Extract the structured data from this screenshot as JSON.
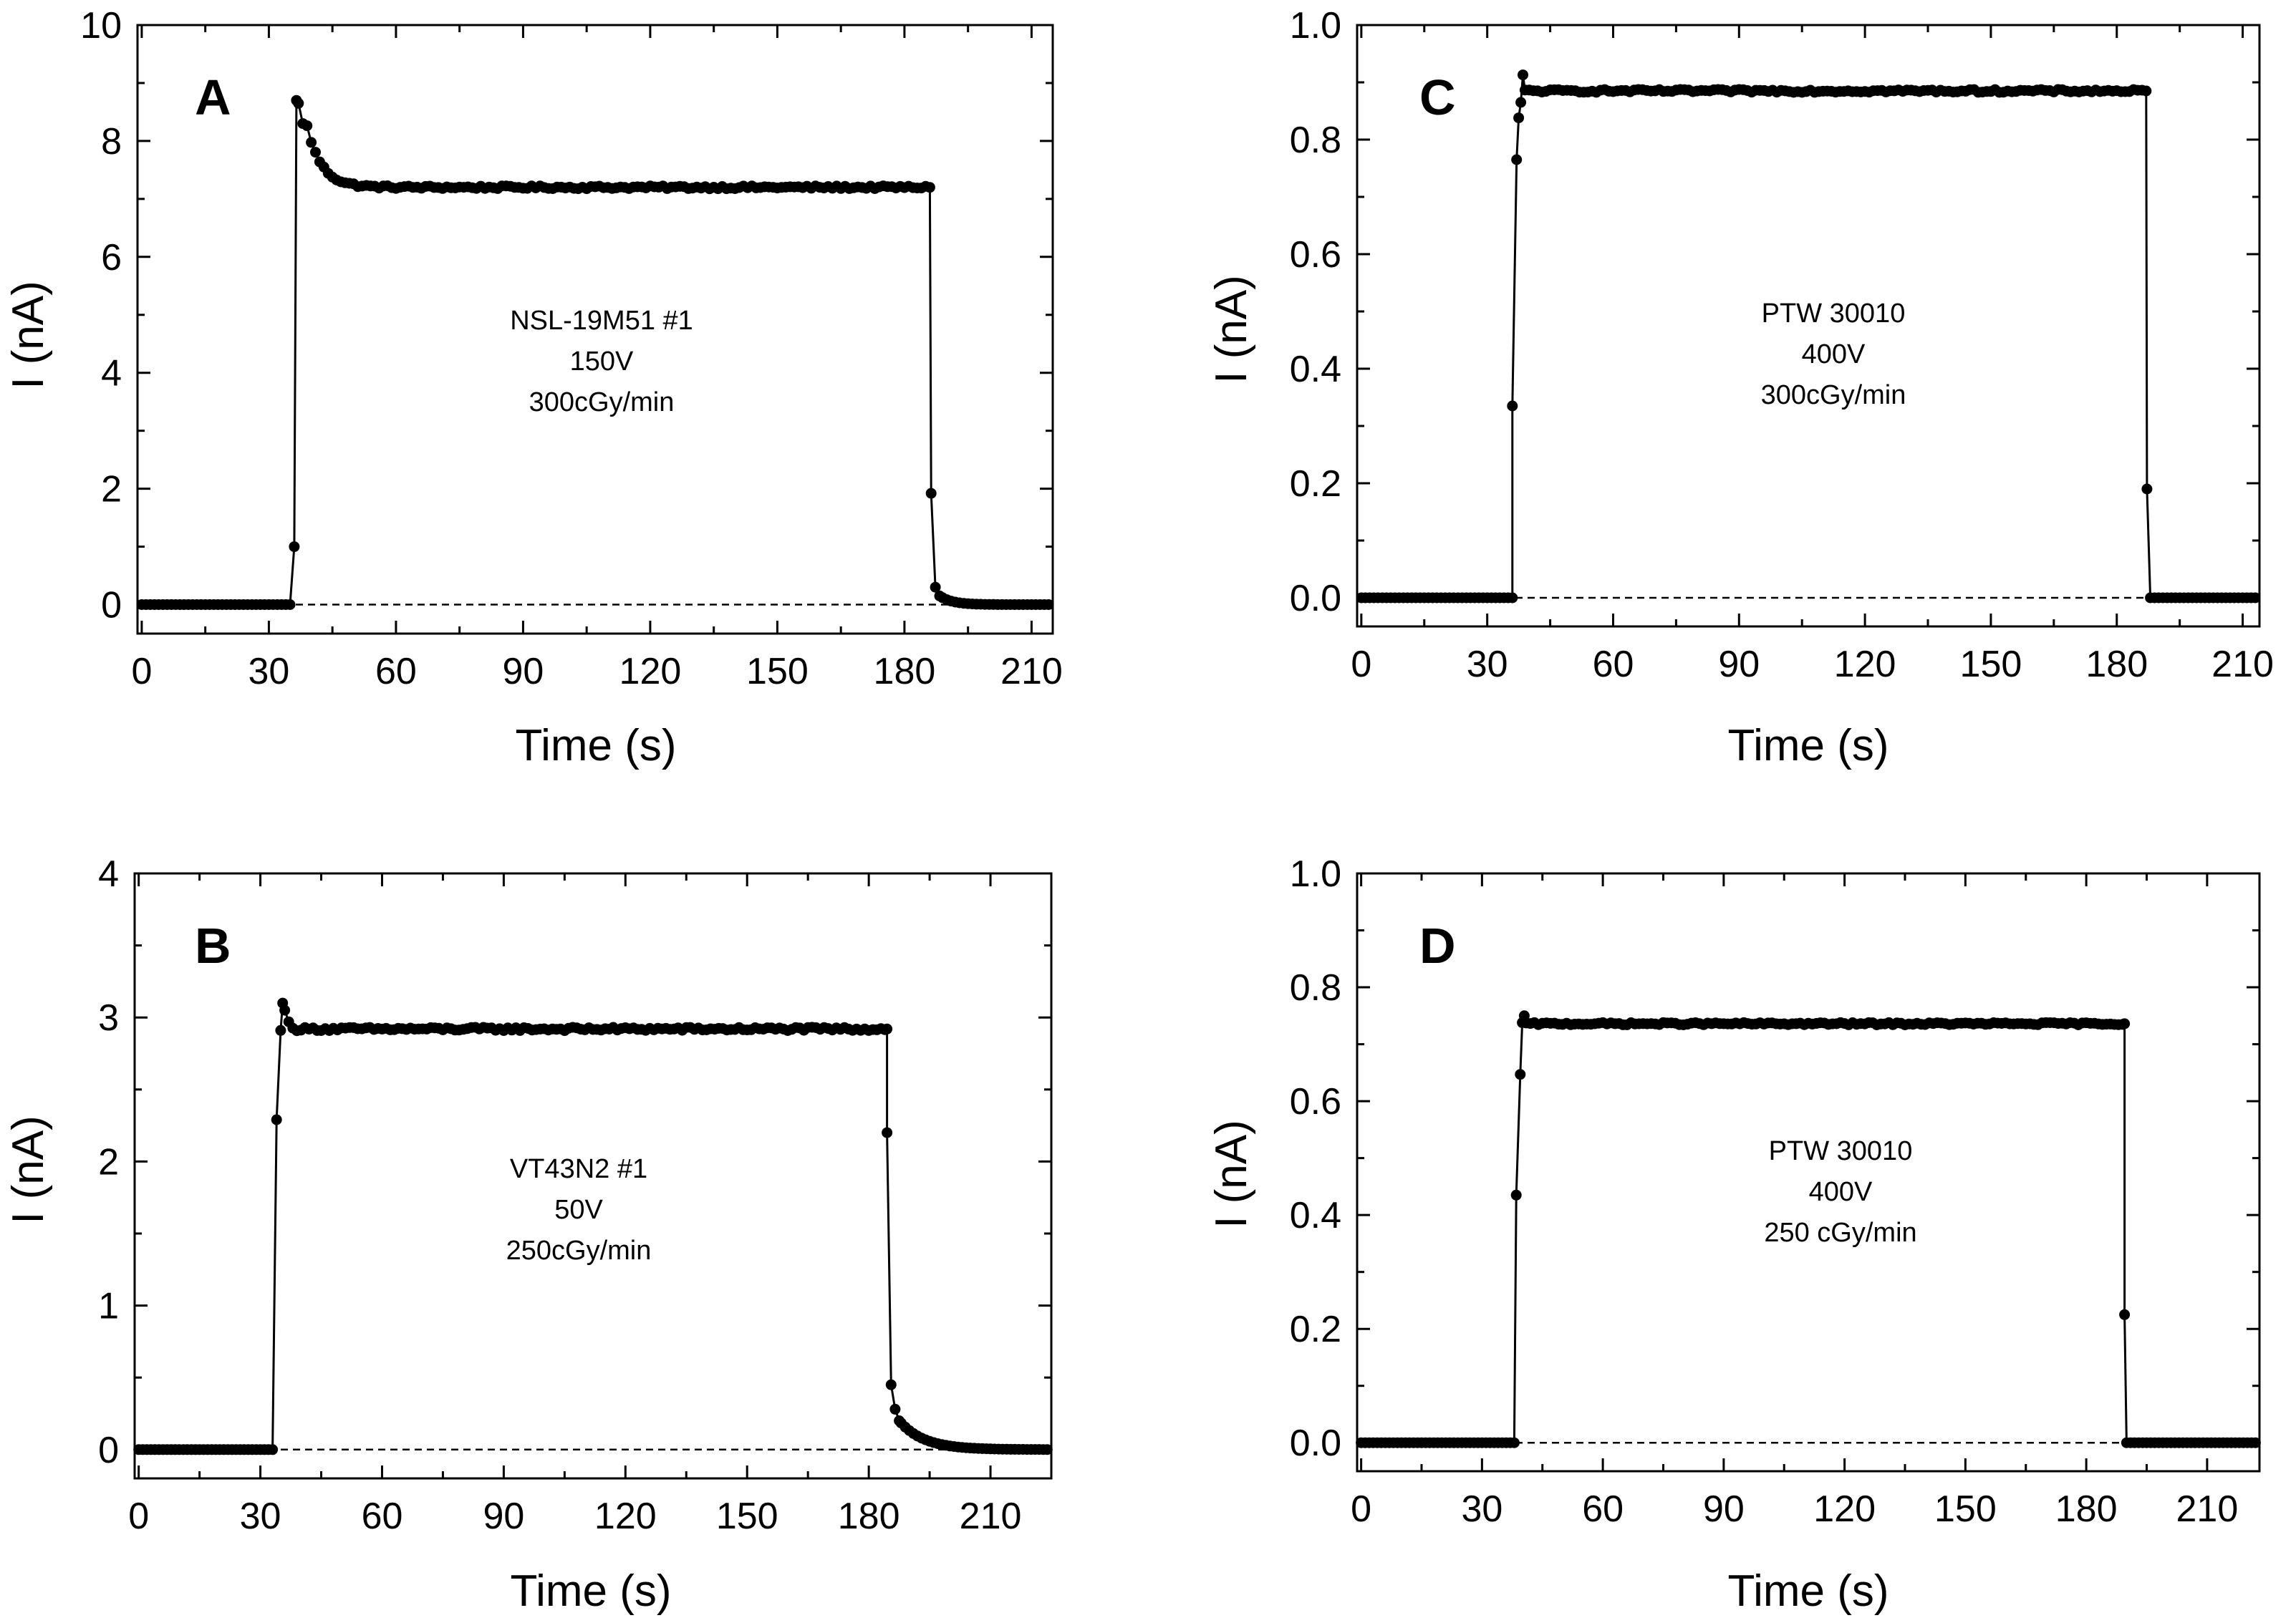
{
  "figure": {
    "background": "#ffffff",
    "ink": "#000000"
  },
  "chart_data": [
    {
      "id": "A",
      "type": "scatter",
      "panel_label": "A",
      "xlabel": "Time (s)",
      "ylabel": "I (nA)",
      "xlim": [
        -1,
        215
      ],
      "ylim": [
        -0.5,
        10
      ],
      "xticks": [
        0,
        30,
        60,
        90,
        120,
        150,
        180,
        210
      ],
      "yticks": [
        0,
        2,
        4,
        6,
        8,
        10
      ],
      "ytick_labels": [
        "0",
        "2",
        "4",
        "6",
        "8",
        "10"
      ],
      "annotation": [
        "NSL-19M51 #1",
        "150V",
        "300cGy/min"
      ],
      "baseline_value": 0,
      "series": [
        {
          "name": "NSL-19M51 #1",
          "x_start": 0,
          "x_end": 214.5,
          "step": 1,
          "on": 37,
          "off": 186.5,
          "zero": 0,
          "plateau": 7.2,
          "noise": 0.025,
          "rise": [
            [
              36,
              1.0
            ],
            [
              36.5,
              8.7
            ],
            [
              37,
              8.65
            ],
            [
              38,
              8.3
            ]
          ],
          "overshoot": {
            "peak": 8.6,
            "tau": 3.5
          },
          "fall": [
            [
              186.3,
              1.92
            ],
            [
              187.3,
              0.3
            ],
            [
              188.3,
              0.15
            ]
          ],
          "tail": {
            "start": 0.15,
            "tau": 3
          }
        }
      ]
    },
    {
      "id": "B",
      "type": "scatter",
      "panel_label": "B",
      "xlabel": "Time (s)",
      "ylabel": "I (nA)",
      "xlim": [
        -1,
        225
      ],
      "ylim": [
        -0.2,
        4
      ],
      "xticks": [
        0,
        30,
        60,
        90,
        120,
        150,
        180,
        210
      ],
      "yticks": [
        0,
        1,
        2,
        3,
        4
      ],
      "ytick_labels": [
        "0",
        "1",
        "2",
        "3",
        "4"
      ],
      "annotation": [
        "VT43N2 #1",
        "50V",
        "250cGy/min"
      ],
      "baseline_value": 0,
      "series": [
        {
          "name": "VT43N2 #1",
          "x_start": 0,
          "x_end": 224,
          "step": 1,
          "on": 35,
          "off": 185,
          "zero": 0,
          "plateau": 2.92,
          "noise": 0.012,
          "rise": [
            [
              34,
              2.29
            ],
            [
              35,
              2.91
            ],
            [
              35.5,
              3.1
            ],
            [
              36,
              3.05
            ],
            [
              37,
              2.97
            ]
          ],
          "overshoot": {
            "peak": 0.1,
            "tau": 1.5
          },
          "fall": [
            [
              184.5,
              2.2
            ],
            [
              185.5,
              0.45
            ],
            [
              186.5,
              0.28
            ],
            [
              187.5,
              0.2
            ]
          ],
          "tail": {
            "start": 0.2,
            "tau": 6
          }
        }
      ]
    },
    {
      "id": "C",
      "type": "scatter",
      "panel_label": "C",
      "xlabel": "Time (s)",
      "ylabel": "I (nA)",
      "xlim": [
        -1,
        214
      ],
      "ylim": [
        -0.05,
        1.0
      ],
      "xticks": [
        0,
        30,
        60,
        90,
        120,
        150,
        180,
        210
      ],
      "yticks": [
        0.0,
        0.2,
        0.4,
        0.6,
        0.8,
        1.0
      ],
      "ytick_labels": [
        "0.0",
        "0.2",
        "0.4",
        "0.6",
        "0.8",
        "1.0"
      ],
      "annotation": [
        "PTW 30010",
        "400V",
        "300cGy/min"
      ],
      "baseline_value": 0,
      "series": [
        {
          "name": "PTW 30010 (300cGy/min)",
          "x_start": 0,
          "x_end": 213.5,
          "step": 1,
          "on": 38,
          "off": 187.5,
          "zero": 0,
          "plateau": 0.885,
          "noise": 0.0025,
          "rise": [
            [
              36,
              0.335
            ],
            [
              37,
              0.765
            ],
            [
              37.5,
              0.838
            ],
            [
              38,
              0.865
            ],
            [
              38.5,
              0.913
            ]
          ],
          "overshoot": {
            "peak": 0,
            "tau": 1
          },
          "fall": [
            [
              187.2,
              0.19
            ]
          ],
          "tail": {
            "start": 0,
            "tau": 1
          }
        }
      ]
    },
    {
      "id": "D",
      "type": "scatter",
      "panel_label": "D",
      "xlabel": "Time (s)",
      "ylabel": "I (nA)",
      "xlim": [
        -1,
        223
      ],
      "ylim": [
        -0.05,
        1.0
      ],
      "xticks": [
        0,
        30,
        60,
        90,
        120,
        150,
        180,
        210
      ],
      "yticks": [
        0.0,
        0.2,
        0.4,
        0.6,
        0.8,
        1.0
      ],
      "ytick_labels": [
        "0.0",
        "0.2",
        "0.4",
        "0.6",
        "0.8",
        "1.0"
      ],
      "annotation": [
        "PTW 30010",
        "400V",
        "250 cGy/min"
      ],
      "baseline_value": 0,
      "series": [
        {
          "name": "PTW 30010 (250 cGy/min)",
          "x_start": 0,
          "x_end": 222,
          "step": 1,
          "on": 40,
          "off": 190,
          "zero": 0,
          "plateau": 0.736,
          "noise": 0.002,
          "rise": [
            [
              38.5,
              0.435
            ],
            [
              39.5,
              0.647
            ],
            [
              40,
              0.738
            ],
            [
              40.5,
              0.75
            ]
          ],
          "overshoot": {
            "peak": 0,
            "tau": 1
          },
          "fall": [
            [
              189.5,
              0.225
            ]
          ],
          "tail": {
            "start": 0,
            "tau": 1
          }
        }
      ]
    }
  ]
}
